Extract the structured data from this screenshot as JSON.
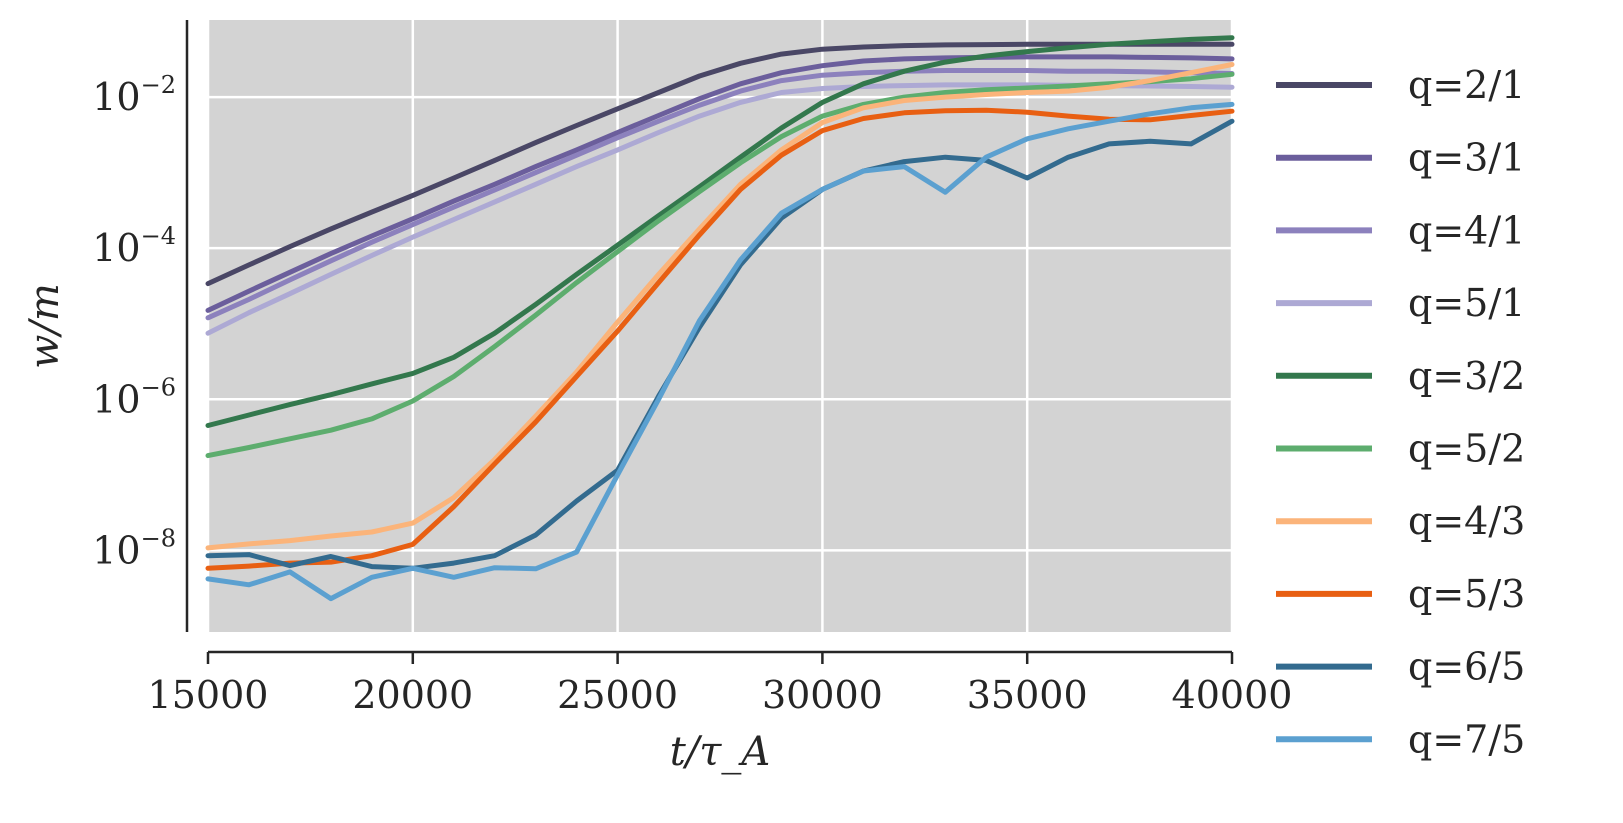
{
  "chart_data": {
    "type": "line",
    "title": "",
    "xlabel": "t/τ_A",
    "ylabel": "w/m",
    "xlim": [
      15000,
      40000
    ],
    "ylim_log10": [
      -9.08,
      -0.98
    ],
    "yscale": "log",
    "grid": true,
    "legend_placement": "outside-right",
    "x_ticks": [
      15000,
      20000,
      25000,
      30000,
      35000,
      40000
    ],
    "x_tick_labels": [
      "15000",
      "20000",
      "25000",
      "30000",
      "35000",
      "40000"
    ],
    "y_ticks_log10": [
      -2,
      -4,
      -6,
      -8
    ],
    "y_tick_labels": [
      {
        "base": "10",
        "exp": "−2"
      },
      {
        "base": "10",
        "exp": "−4"
      },
      {
        "base": "10",
        "exp": "−6"
      },
      {
        "base": "10",
        "exp": "−8"
      }
    ],
    "x": [
      15000,
      16000,
      17000,
      18000,
      19000,
      20000,
      21000,
      22000,
      23000,
      24000,
      25000,
      26000,
      27000,
      28000,
      29000,
      30000,
      31000,
      32000,
      33000,
      34000,
      35000,
      36000,
      37000,
      38000,
      39000,
      40000
    ],
    "series": [
      {
        "name": "q=2/1",
        "color": "#4a4766",
        "values": [
          3.4e-05,
          6e-05,
          0.000105,
          0.00018,
          0.0003,
          0.0005,
          0.00085,
          0.00145,
          0.0025,
          0.0042,
          0.007,
          0.0115,
          0.019,
          0.028,
          0.037,
          0.043,
          0.046,
          0.048,
          0.049,
          0.0495,
          0.05,
          0.05,
          0.05,
          0.05,
          0.05,
          0.05
        ]
      },
      {
        "name": "q=3/1",
        "color": "#6b5e9c",
        "values": [
          1.5e-05,
          2.7e-05,
          4.8e-05,
          8.5e-05,
          0.000145,
          0.000245,
          0.00042,
          0.0007,
          0.0012,
          0.002,
          0.0034,
          0.0057,
          0.0095,
          0.015,
          0.021,
          0.026,
          0.03,
          0.032,
          0.033,
          0.0335,
          0.034,
          0.034,
          0.034,
          0.0335,
          0.033,
          0.032
        ]
      },
      {
        "name": "q=4/1",
        "color": "#8c81bd",
        "values": [
          1.2e-05,
          2.1e-05,
          3.8e-05,
          6.8e-05,
          0.00012,
          0.000205,
          0.00035,
          0.00059,
          0.001,
          0.0017,
          0.0029,
          0.0048,
          0.0078,
          0.012,
          0.0165,
          0.0195,
          0.021,
          0.022,
          0.0225,
          0.0225,
          0.0225,
          0.022,
          0.022,
          0.0215,
          0.021,
          0.0205
        ]
      },
      {
        "name": "q=5/1",
        "color": "#ada9d4",
        "values": [
          7.5e-06,
          1.4e-05,
          2.5e-05,
          4.5e-05,
          8e-05,
          0.00014,
          0.00024,
          0.00041,
          0.0007,
          0.0012,
          0.002,
          0.0034,
          0.0056,
          0.0085,
          0.0115,
          0.013,
          0.0138,
          0.0142,
          0.0145,
          0.0145,
          0.0145,
          0.0143,
          0.0142,
          0.014,
          0.0138,
          0.0135
        ]
      },
      {
        "name": "q=3/2",
        "color": "#33784d",
        "values": [
          4.5e-07,
          6.2e-07,
          8.5e-07,
          1.15e-06,
          1.6e-06,
          2.2e-06,
          3.6e-06,
          7.5e-06,
          1.8e-05,
          4.5e-05,
          0.00011,
          0.00027,
          0.00065,
          0.0016,
          0.0039,
          0.0085,
          0.015,
          0.022,
          0.029,
          0.035,
          0.04,
          0.045,
          0.05,
          0.054,
          0.058,
          0.061
        ]
      },
      {
        "name": "q=5/2",
        "color": "#5dad6e",
        "values": [
          1.8e-07,
          2.3e-07,
          3e-07,
          3.9e-07,
          5.5e-07,
          9.5e-07,
          2e-06,
          5e-06,
          1.3e-05,
          3.5e-05,
          9e-05,
          0.00023,
          0.00056,
          0.00135,
          0.003,
          0.0056,
          0.008,
          0.01,
          0.0115,
          0.0125,
          0.0132,
          0.014,
          0.015,
          0.016,
          0.0175,
          0.02
        ]
      },
      {
        "name": "q=4/3",
        "color": "#fbb47a",
        "values": [
          1.08e-08,
          1.22e-08,
          1.35e-08,
          1.55e-08,
          1.75e-08,
          2.3e-08,
          5e-08,
          1.6e-07,
          6e-07,
          2.3e-06,
          1.05e-05,
          4.5e-05,
          0.00018,
          0.0007,
          0.002,
          0.0046,
          0.0072,
          0.009,
          0.01,
          0.0108,
          0.0115,
          0.012,
          0.0135,
          0.0165,
          0.021,
          0.027
        ]
      },
      {
        "name": "q=5/3",
        "color": "#e85f12",
        "values": [
          5.8e-09,
          6.2e-09,
          6.8e-09,
          7e-09,
          8.5e-09,
          1.2e-08,
          3.8e-08,
          1.4e-07,
          5e-07,
          2e-06,
          8e-06,
          3.5e-05,
          0.00015,
          0.0006,
          0.0017,
          0.0036,
          0.0052,
          0.0062,
          0.0066,
          0.0067,
          0.0063,
          0.0056,
          0.0051,
          0.005,
          0.0057,
          0.0065
        ]
      },
      {
        "name": "q=6/5",
        "color": "#336b8f",
        "values": [
          8.5e-09,
          8.8e-09,
          6.3e-09,
          8.3e-09,
          6.1e-09,
          5.8e-09,
          6.8e-09,
          8.5e-09,
          1.6e-08,
          4.5e-08,
          1.15e-07,
          1.1e-06,
          9e-06,
          6e-05,
          0.00025,
          0.0006,
          0.00105,
          0.0014,
          0.0016,
          0.00145,
          0.00085,
          0.0016,
          0.0024,
          0.0026,
          0.0024,
          0.0048
        ]
      },
      {
        "name": "q=7/5",
        "color": "#5ba0d0",
        "values": [
          4.2e-09,
          3.5e-09,
          5.2e-09,
          2.3e-09,
          4.4e-09,
          5.8e-09,
          4.4e-09,
          5.9e-09,
          5.7e-09,
          9.5e-09,
          1e-07,
          1e-06,
          1.1e-05,
          7e-05,
          0.00029,
          0.0006,
          0.00105,
          0.0012,
          0.00055,
          0.0016,
          0.0028,
          0.0038,
          0.0048,
          0.006,
          0.0072,
          0.008
        ]
      }
    ]
  }
}
